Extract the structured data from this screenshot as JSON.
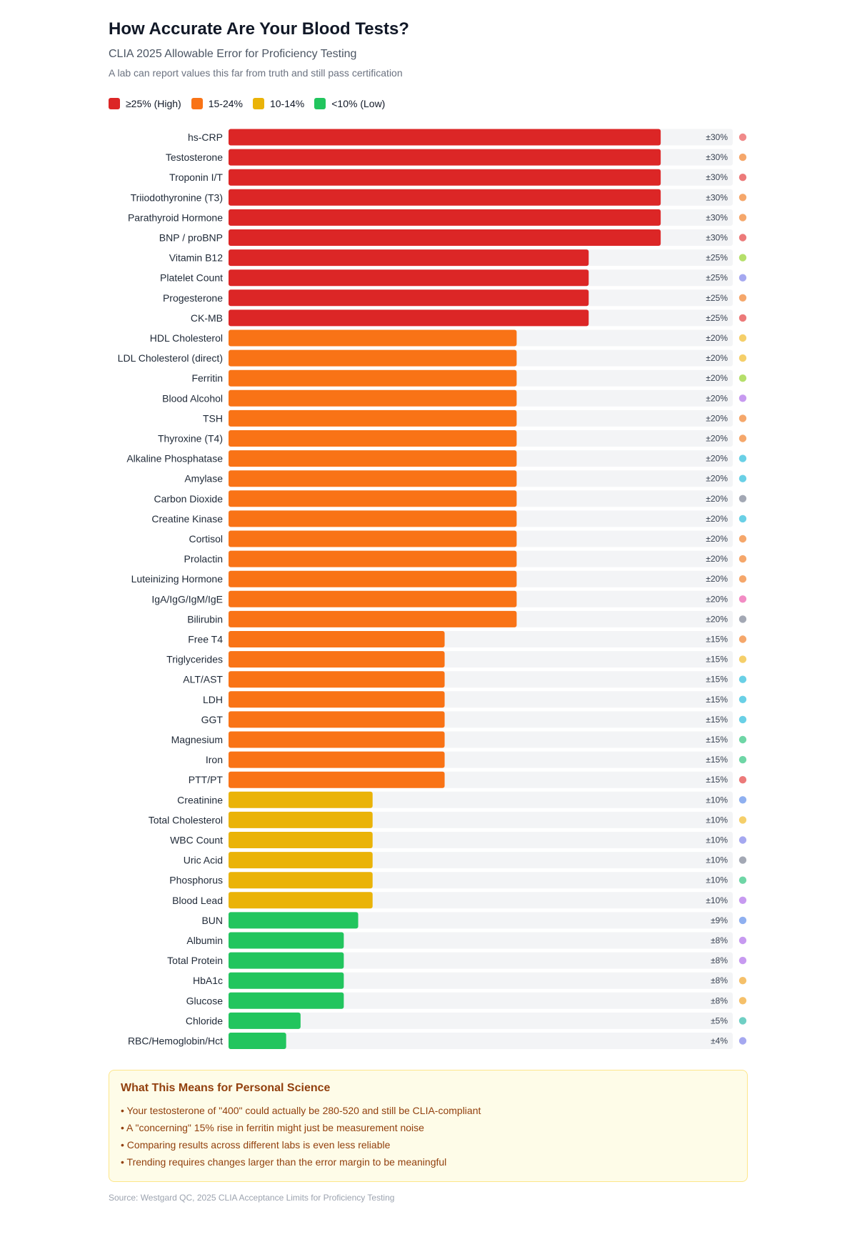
{
  "header": {
    "title": "How Accurate Are Your Blood Tests?",
    "subtitle": "CLIA 2025 Allowable Error for Proficiency Testing",
    "note": "A lab can report values this far from truth and still pass certification"
  },
  "legend": [
    {
      "label": "≥25% (High)",
      "color": "#dc2626"
    },
    {
      "label": "15-24%",
      "color": "#f97316"
    },
    {
      "label": "10-14%",
      "color": "#eab308"
    },
    {
      "label": "<10% (Low)",
      "color": "#22c55e"
    }
  ],
  "chart_data": {
    "type": "bar",
    "orientation": "horizontal",
    "title": "CLIA 2025 Allowable Error for Proficiency Testing",
    "xlim": [
      0,
      35
    ],
    "unit": "±%",
    "categories": [
      "hs-CRP",
      "Testosterone",
      "Troponin I/T",
      "Triiodothyronine (T3)",
      "Parathyroid Hormone",
      "BNP / proBNP",
      "Vitamin B12",
      "Platelet Count",
      "Progesterone",
      "CK-MB",
      "HDL Cholesterol",
      "LDL Cholesterol (direct)",
      "Ferritin",
      "Blood Alcohol",
      "TSH",
      "Thyroxine (T4)",
      "Alkaline Phosphatase",
      "Amylase",
      "Carbon Dioxide",
      "Creatine Kinase",
      "Cortisol",
      "Prolactin",
      "Luteinizing Hormone",
      "IgA/IgG/IgM/IgE",
      "Bilirubin",
      "Free T4",
      "Triglycerides",
      "ALT/AST",
      "LDH",
      "GGT",
      "Magnesium",
      "Iron",
      "PTT/PT",
      "Creatinine",
      "Total Cholesterol",
      "WBC Count",
      "Uric Acid",
      "Phosphorus",
      "Blood Lead",
      "BUN",
      "Albumin",
      "Total Protein",
      "HbA1c",
      "Glucose",
      "Chloride",
      "RBC/Hemoglobin/Hct"
    ],
    "values": [
      30,
      30,
      30,
      30,
      30,
      30,
      25,
      25,
      25,
      25,
      20,
      20,
      20,
      20,
      20,
      20,
      20,
      20,
      20,
      20,
      20,
      20,
      20,
      20,
      20,
      15,
      15,
      15,
      15,
      15,
      15,
      15,
      15,
      10,
      10,
      10,
      10,
      10,
      10,
      9,
      8,
      8,
      8,
      8,
      5,
      4
    ],
    "labels": [
      "±30%",
      "±30%",
      "±30%",
      "±30%",
      "±30%",
      "±30%",
      "±25%",
      "±25%",
      "±25%",
      "±25%",
      "±20%",
      "±20%",
      "±20%",
      "±20%",
      "±20%",
      "±20%",
      "±20%",
      "±20%",
      "±20%",
      "±20%",
      "±20%",
      "±20%",
      "±20%",
      "±20%",
      "±20%",
      "±15%",
      "±15%",
      "±15%",
      "±15%",
      "±15%",
      "±15%",
      "±15%",
      "±15%",
      "±10%",
      "±10%",
      "±10%",
      "±10%",
      "±10%",
      "±10%",
      "±9%",
      "±8%",
      "±8%",
      "±8%",
      "±8%",
      "±5%",
      "±4%"
    ],
    "category_dot_colors": [
      "#f08a8a",
      "#f5a76b",
      "#ec7a7a",
      "#f5a76b",
      "#f5a76b",
      "#ec7a7a",
      "#b5df6a",
      "#a5a8f0",
      "#f5a76b",
      "#ec7a7a",
      "#f5cf6a",
      "#f5cf6a",
      "#b5df6a",
      "#c79af0",
      "#f5a76b",
      "#f5a76b",
      "#6ad0e6",
      "#6ad0e6",
      "#a3a8b4",
      "#6ad0e6",
      "#f5a76b",
      "#f5a76b",
      "#f5a76b",
      "#f28cc4",
      "#a3a8b4",
      "#f5a76b",
      "#f5cf6a",
      "#6ad0e6",
      "#6ad0e6",
      "#6ad0e6",
      "#6fd6a6",
      "#6fd6a6",
      "#ec7a7a",
      "#8fb0f0",
      "#f5cf6a",
      "#a5a8f0",
      "#a3a8b4",
      "#6fd6a6",
      "#c79af0",
      "#8fb0f0",
      "#c79af0",
      "#c79af0",
      "#f5c06a",
      "#f5c06a",
      "#6fcfc4",
      "#a5a8f0"
    ],
    "thresholds": [
      {
        "min": 25,
        "color": "#dc2626"
      },
      {
        "min": 15,
        "color": "#f97316"
      },
      {
        "min": 10,
        "color": "#eab308"
      },
      {
        "min": 0,
        "color": "#22c55e"
      }
    ],
    "track_color": "#f3f4f6"
  },
  "info": {
    "title": "What This Means for Personal Science",
    "items": [
      "• Your testosterone of \"400\" could actually be 280-520 and still be CLIA-compliant",
      "• A \"concerning\" 15% rise in ferritin might just be measurement noise",
      "• Comparing results across different labs is even less reliable",
      "• Trending requires changes larger than the error margin to be meaningful"
    ]
  },
  "source": "Source: Westgard QC, 2025 CLIA Acceptance Limits for Proficiency Testing"
}
